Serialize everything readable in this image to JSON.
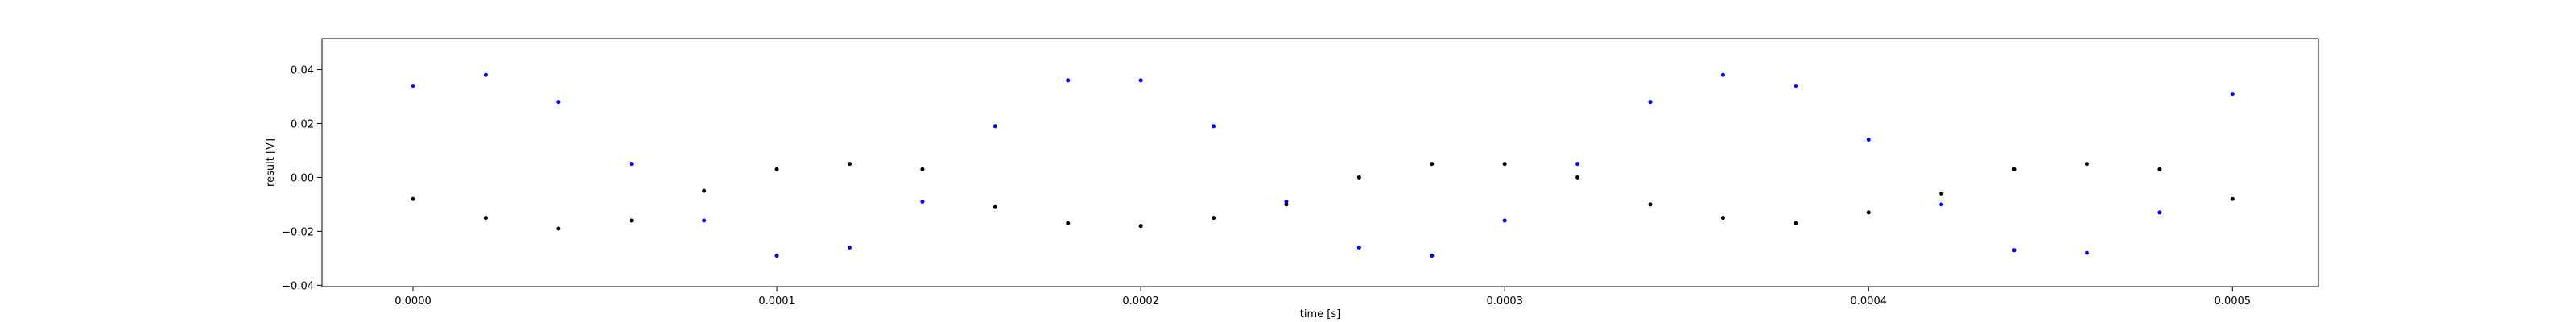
{
  "chart_data": {
    "type": "scatter",
    "title": "",
    "xlabel": "time [s]",
    "ylabel": "result [V]",
    "xlim": [
      -2.5e-05,
      0.0005236
    ],
    "ylim": [
      -0.0405,
      0.0515
    ],
    "grid": false,
    "x_ticks": [
      0.0,
      0.0001,
      0.0002,
      0.0003,
      0.0004,
      0.0005
    ],
    "x_tick_labels": [
      "0.0000",
      "0.0001",
      "0.0002",
      "0.0003",
      "0.0004",
      "0.0005"
    ],
    "y_ticks": [
      -0.04,
      -0.02,
      0.0,
      0.02,
      0.04
    ],
    "y_tick_labels": [
      "−0.04",
      "−0.02",
      "0.00",
      "0.02",
      "0.04"
    ],
    "series": [
      {
        "color": "#0000ff",
        "marker_size": 2.5,
        "x": [
          0.0,
          2e-05,
          4e-05,
          6e-05,
          8e-05,
          0.0001,
          0.00012,
          0.00014,
          0.00016,
          0.00018,
          0.0002,
          0.00022,
          0.00024,
          0.00026,
          0.00028,
          0.0003,
          0.00032,
          0.00034,
          0.00036,
          0.00038,
          0.0004,
          0.00042,
          0.00044,
          0.00046,
          0.00048,
          0.0005
        ],
        "y": [
          0.034,
          0.038,
          0.028,
          0.005,
          -0.016,
          -0.029,
          -0.026,
          -0.009,
          0.019,
          0.036,
          0.036,
          0.019,
          -0.009,
          -0.026,
          -0.029,
          -0.016,
          0.005,
          0.028,
          0.038,
          0.034,
          0.014,
          -0.01,
          -0.027,
          -0.028,
          -0.013,
          0.031
        ]
      },
      {
        "color": "#000000",
        "marker_size": 2.5,
        "x": [
          0.0,
          2e-05,
          4e-05,
          6e-05,
          8e-05,
          0.0001,
          0.00012,
          0.00014,
          0.00016,
          0.00018,
          0.0002,
          0.00022,
          0.00024,
          0.00026,
          0.00028,
          0.0003,
          0.00032,
          0.00034,
          0.00036,
          0.00038,
          0.0004,
          0.00042,
          0.00044,
          0.00046,
          0.00048,
          0.0005
        ],
        "y": [
          -0.008,
          -0.015,
          -0.019,
          -0.016,
          -0.005,
          0.003,
          0.005,
          0.003,
          -0.011,
          -0.017,
          -0.018,
          -0.015,
          -0.01,
          0.0,
          0.005,
          0.005,
          0.0,
          -0.01,
          -0.015,
          -0.017,
          -0.013,
          -0.006,
          0.003,
          0.005,
          0.003,
          -0.008
        ]
      }
    ]
  }
}
